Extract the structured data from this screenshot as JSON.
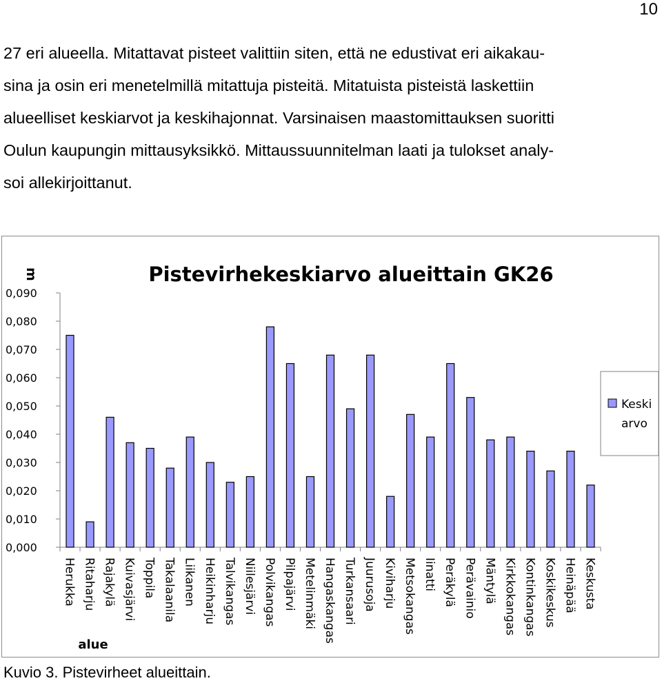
{
  "page_number": "10",
  "paragraph": "27 eri alueella. Mitattavat pisteet valittiin siten, että ne edustivat eri aikakausina ja osin eri menetelmillä mitattuja pisteitä. Mitatuista pisteistä laskettiin alueelliset keskiarvot ja keskihajonnat. Varsinaisen maastomittauksen suoritti Oulun kaupungin mittausyksikkö. Mittaussuunnitelman laati ja tulokset analysoi allekirjoittanut.",
  "paragraph_lines": [
    "27 eri alueella. Mitattavat pisteet valittiin siten, että ne edustivat eri aikakau-",
    "sina ja osin eri menetelmillä mitattuja pisteitä. Mitatuista pisteistä laskettiin",
    "alueelliset keskiarvot ja keskihajonnat. Varsinaisen maastomittauksen suoritti",
    "Oulun kaupungin mittausyksikkö. Mittaussuunnitelman laati ja tulokset analy-",
    "soi allekirjoittanut."
  ],
  "caption": "Kuvio 3. Pistevirheet alueittain.",
  "chart_data": {
    "type": "bar",
    "title": "Pistevirhekeskiarvo  alueittain GK26",
    "ylabel": "m",
    "xlabel": "alue",
    "ylim": [
      0,
      0.09
    ],
    "yticks": [
      "0,000",
      "0,010",
      "0,020",
      "0,030",
      "0,040",
      "0,050",
      "0,060",
      "0,070",
      "0,080",
      "0,090"
    ],
    "grid": false,
    "legend_position": "right",
    "categories": [
      "Herukka",
      "Ritaharju",
      "Rajakylä",
      "Kuivasjärvi",
      "Toppila",
      "Takalaanila",
      "Liikanen",
      "Heikinharju",
      "Talvikangas",
      "Niilesjärvi",
      "Polvikangas",
      "Pilpajärvi",
      "Metelinmäki",
      "Hangaskangas",
      "Turkansaari",
      "Juurusoja",
      "Kiviharju",
      "Metsokangas",
      "Iinatti",
      "Peräkylä",
      "Perävainio",
      "Mäntylä",
      "Kirkkokangas",
      "Kontinkangas",
      "Koskikeskus",
      "Heinäpää",
      "Keskusta"
    ],
    "series": [
      {
        "name": "Keski arvo",
        "legend_lines": [
          "Keski",
          "arvo"
        ],
        "color": "#9999ff",
        "values": [
          0.075,
          0.009,
          0.046,
          0.037,
          0.035,
          0.028,
          0.039,
          0.03,
          0.023,
          0.025,
          0.078,
          0.065,
          0.025,
          0.068,
          0.049,
          0.068,
          0.018,
          0.047,
          0.039,
          0.065,
          0.053,
          0.038,
          0.039,
          0.034,
          0.027,
          0.034,
          0.022
        ]
      }
    ]
  }
}
